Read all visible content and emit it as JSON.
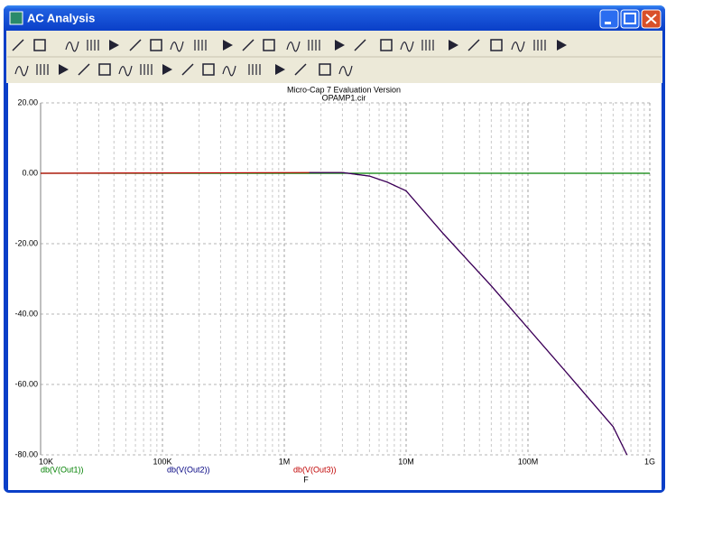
{
  "window": {
    "title": "AC Analysis"
  },
  "chart_data": {
    "type": "line",
    "title": "Micro-Cap 7 Evaluation Version",
    "subtitle": "OPAMP1.cir",
    "xlabel": "F",
    "x": [
      10000,
      1600000,
      3000000,
      5000000,
      7000000,
      10000000,
      20000000,
      50000000,
      100000000,
      200000000,
      500000000,
      650000000,
      1000000000
    ],
    "series": [
      {
        "name": "db(V(Out1))",
        "color": "#008000",
        "values": [
          0,
          0,
          0,
          0,
          0,
          0,
          0,
          0,
          0,
          0,
          0,
          0,
          0
        ]
      },
      {
        "name": "db(V(Out2))",
        "color": "#000080",
        "values": [
          null,
          0.2,
          0.2,
          -0.8,
          -2.5,
          -5,
          -17,
          -32,
          -44,
          -56,
          -72,
          -80,
          null
        ]
      },
      {
        "name": "db(V(Out3))",
        "color": "#c00000",
        "values": [
          0,
          0.2,
          0.2,
          -0.8,
          -2.5,
          -5,
          -17,
          -32,
          -44,
          -56,
          -72,
          -80,
          null
        ]
      }
    ],
    "xlim": [
      10000,
      1000000000
    ],
    "xlog": true,
    "xticks": [
      {
        "value": 10000,
        "label": "10K"
      },
      {
        "value": 100000,
        "label": "100K"
      },
      {
        "value": 1000000,
        "label": "1M"
      },
      {
        "value": 10000000,
        "label": "10M"
      },
      {
        "value": 100000000,
        "label": "100M"
      },
      {
        "value": 1000000000,
        "label": "1G"
      }
    ],
    "ylim": [
      -80,
      20
    ],
    "yticks": [
      {
        "value": 20,
        "label": "20.00"
      },
      {
        "value": 0,
        "label": "0.00"
      },
      {
        "value": -20,
        "label": "-20.00"
      },
      {
        "value": -40,
        "label": "-40.00"
      },
      {
        "value": -60,
        "label": "-60.00"
      },
      {
        "value": -80,
        "label": "-80.00"
      }
    ],
    "grid": true
  }
}
